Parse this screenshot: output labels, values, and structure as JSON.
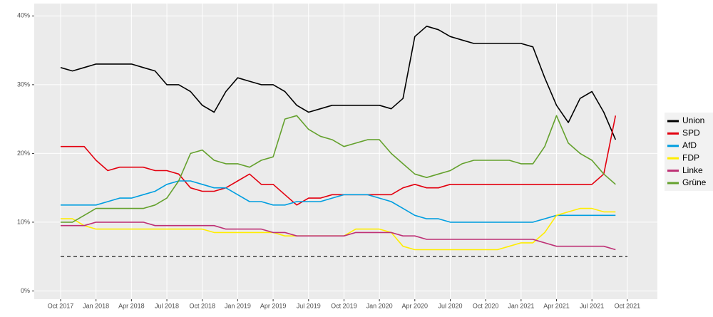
{
  "chart_data": {
    "type": "line",
    "x": [
      "2017-10",
      "2017-11",
      "2017-12",
      "2018-01",
      "2018-02",
      "2018-03",
      "2018-04",
      "2018-05",
      "2018-06",
      "2018-07",
      "2018-08",
      "2018-09",
      "2018-10",
      "2018-11",
      "2018-12",
      "2019-01",
      "2019-02",
      "2019-03",
      "2019-04",
      "2019-05",
      "2019-06",
      "2019-07",
      "2019-08",
      "2019-09",
      "2019-10",
      "2019-11",
      "2019-12",
      "2020-01",
      "2020-02",
      "2020-03",
      "2020-04",
      "2020-05",
      "2020-06",
      "2020-07",
      "2020-08",
      "2020-09",
      "2020-10",
      "2020-11",
      "2020-12",
      "2021-01",
      "2021-02",
      "2021-03",
      "2021-04",
      "2021-05",
      "2021-06",
      "2021-07",
      "2021-08",
      "2021-09"
    ],
    "series": [
      {
        "name": "Union",
        "color": "#000000",
        "values": [
          32.5,
          32,
          32.5,
          33,
          33,
          33,
          33,
          32.5,
          32,
          30,
          30,
          29,
          27,
          26,
          29,
          31,
          30.5,
          30,
          30,
          29,
          27,
          26,
          26.5,
          27,
          27,
          27,
          27,
          27,
          26.5,
          28,
          37,
          38.5,
          38,
          37,
          36.5,
          36,
          36,
          36,
          36,
          36,
          35.5,
          31,
          27,
          24.5,
          28,
          29,
          26,
          22
        ]
      },
      {
        "name": "SPD",
        "color": "#e3000f",
        "values": [
          21,
          21,
          21,
          19,
          17.5,
          18,
          18,
          18,
          17.5,
          17.5,
          17,
          15,
          14.5,
          14.5,
          15,
          16,
          17,
          15.5,
          15.5,
          14,
          12.5,
          13.5,
          13.5,
          14,
          14,
          14,
          14,
          14,
          14,
          15,
          15.5,
          15,
          15,
          15.5,
          15.5,
          15.5,
          15.5,
          15.5,
          15.5,
          15.5,
          15.5,
          15.5,
          15.5,
          15.5,
          15.5,
          15.5,
          17,
          25.5
        ]
      },
      {
        "name": "AfD",
        "color": "#009ee0",
        "values": [
          12.5,
          12.5,
          12.5,
          12.5,
          13,
          13.5,
          13.5,
          14,
          14.5,
          15.5,
          16,
          16,
          15.5,
          15,
          15,
          14,
          13,
          13,
          12.5,
          12.5,
          13,
          13,
          13,
          13.5,
          14,
          14,
          14,
          13.5,
          13,
          12,
          11,
          10.5,
          10.5,
          10,
          10,
          10,
          10,
          10,
          10,
          10,
          10,
          10.5,
          11,
          11,
          11,
          11,
          11,
          11
        ]
      },
      {
        "name": "FDP",
        "color": "#ffed00",
        "values": [
          10.5,
          10.5,
          9.5,
          9,
          9,
          9,
          9,
          9,
          9,
          9,
          9,
          9,
          9,
          8.5,
          8.5,
          8.5,
          8.5,
          8.5,
          8.5,
          8,
          8,
          8,
          8,
          8,
          8,
          9,
          9,
          9,
          8.5,
          6.5,
          6,
          6,
          6,
          6,
          6,
          6,
          6,
          6,
          6.5,
          7,
          7,
          8.5,
          11,
          11.5,
          12,
          12,
          11.5,
          11.5
        ]
      },
      {
        "name": "Linke",
        "color": "#be3075",
        "values": [
          9.5,
          9.5,
          9.5,
          10,
          10,
          10,
          10,
          10,
          9.5,
          9.5,
          9.5,
          9.5,
          9.5,
          9.5,
          9,
          9,
          9,
          9,
          8.5,
          8.5,
          8,
          8,
          8,
          8,
          8,
          8.5,
          8.5,
          8.5,
          8.5,
          8,
          8,
          7.5,
          7.5,
          7.5,
          7.5,
          7.5,
          7.5,
          7.5,
          7.5,
          7.5,
          7.5,
          7,
          6.5,
          6.5,
          6.5,
          6.5,
          6.5,
          6
        ]
      },
      {
        "name": "Grüne",
        "color": "#64a12d",
        "values": [
          10,
          10,
          11,
          12,
          12,
          12,
          12,
          12,
          12.5,
          13.5,
          16,
          20,
          20.5,
          19,
          18.5,
          18.5,
          18,
          19,
          19.5,
          25,
          25.5,
          23.5,
          22.5,
          22,
          21,
          21.5,
          22,
          22,
          20,
          18.5,
          17,
          16.5,
          17,
          17.5,
          18.5,
          19,
          19,
          19,
          19,
          18.5,
          18.5,
          21,
          25.5,
          21.5,
          20,
          19,
          17,
          15.5
        ]
      }
    ],
    "ylim": [
      -1.2,
      41.8
    ],
    "yticks": [
      {
        "value": 0,
        "label": "0%"
      },
      {
        "value": 10,
        "label": "10%"
      },
      {
        "value": 20,
        "label": "20%"
      },
      {
        "value": 30,
        "label": "30%"
      },
      {
        "value": 40,
        "label": "40%"
      }
    ],
    "xticks": [
      {
        "value": "2017-10",
        "label": "Oct 2017"
      },
      {
        "value": "2018-01",
        "label": "Jan 2018"
      },
      {
        "value": "2018-04",
        "label": "Apr 2018"
      },
      {
        "value": "2018-07",
        "label": "Jul 2018"
      },
      {
        "value": "2018-10",
        "label": "Oct 2018"
      },
      {
        "value": "2019-01",
        "label": "Jan 2019"
      },
      {
        "value": "2019-04",
        "label": "Apr 2019"
      },
      {
        "value": "2019-07",
        "label": "Jul 2019"
      },
      {
        "value": "2019-10",
        "label": "Oct 2019"
      },
      {
        "value": "2020-01",
        "label": "Jan 2020"
      },
      {
        "value": "2020-04",
        "label": "Apr 2020"
      },
      {
        "value": "2020-07",
        "label": "Jul 2020"
      },
      {
        "value": "2020-10",
        "label": "Oct 2020"
      },
      {
        "value": "2021-01",
        "label": "Jan 2021"
      },
      {
        "value": "2021-04",
        "label": "Apr 2021"
      },
      {
        "value": "2021-07",
        "label": "Jul 2021"
      },
      {
        "value": "2021-10",
        "label": "Oct 2021"
      }
    ],
    "threshold": 5,
    "grid": true
  }
}
